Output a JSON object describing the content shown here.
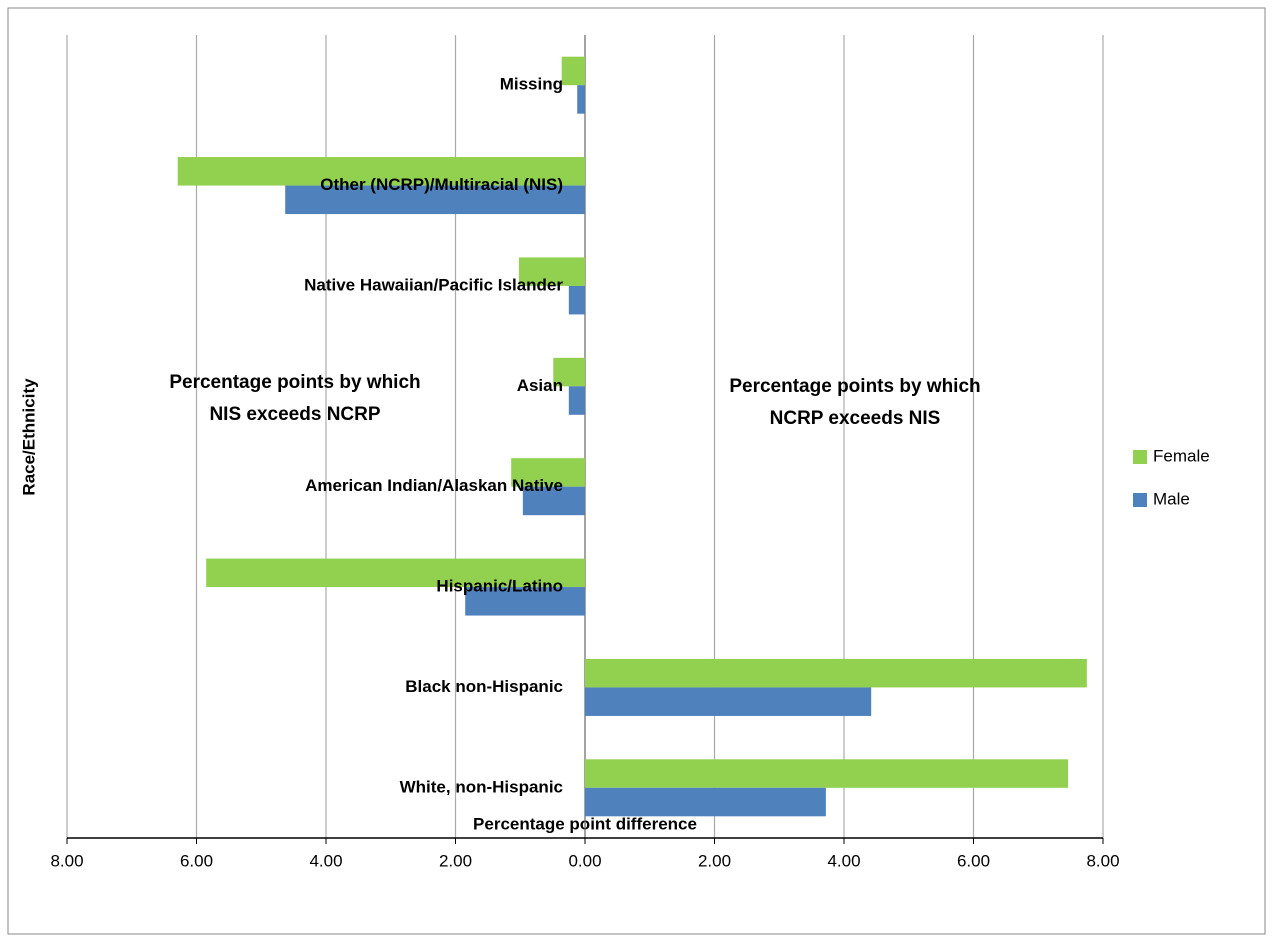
{
  "chart_data": {
    "type": "hbar",
    "categories": [
      "White, non-Hispanic",
      "Black non-Hispanic",
      "Hispanic/Latino",
      "American Indian/Alaskan  Native",
      "Asian",
      "Native Hawaiian/Pacific  Islander",
      "Other (NCRP)/Multiracial  (NIS)",
      "Missing"
    ],
    "series": [
      {
        "name": "Female",
        "color": "#92d050",
        "values": [
          7.46,
          7.75,
          -5.85,
          -1.14,
          -0.49,
          -1.02,
          -6.29,
          -0.36
        ]
      },
      {
        "name": "Male",
        "color": "#4f81bd",
        "values": [
          3.72,
          4.42,
          -1.85,
          -0.96,
          -0.25,
          -0.25,
          -4.63,
          -0.12
        ]
      }
    ],
    "xlim": [
      -8,
      8
    ],
    "xticks": [
      {
        "value": -8,
        "label": "8.00"
      },
      {
        "value": -6,
        "label": "6.00"
      },
      {
        "value": -4,
        "label": "4.00"
      },
      {
        "value": -2,
        "label": "2.00"
      },
      {
        "value": 0,
        "label": "0.00"
      },
      {
        "value": 2,
        "label": "2.00"
      },
      {
        "value": 4,
        "label": "4.00"
      },
      {
        "value": 6,
        "label": "6.00"
      },
      {
        "value": 8,
        "label": "8.00"
      }
    ],
    "xlabel": "Percentage point  difference",
    "ylabel": "Race/Ethnicity",
    "annotations": [
      {
        "lines": [
          "Percentage points by which",
          "NIS exceeds NCRP"
        ]
      },
      {
        "lines": [
          "Percentage points by which",
          "NCRP exceeds NIS"
        ]
      }
    ],
    "grid": true,
    "legend": "right"
  }
}
